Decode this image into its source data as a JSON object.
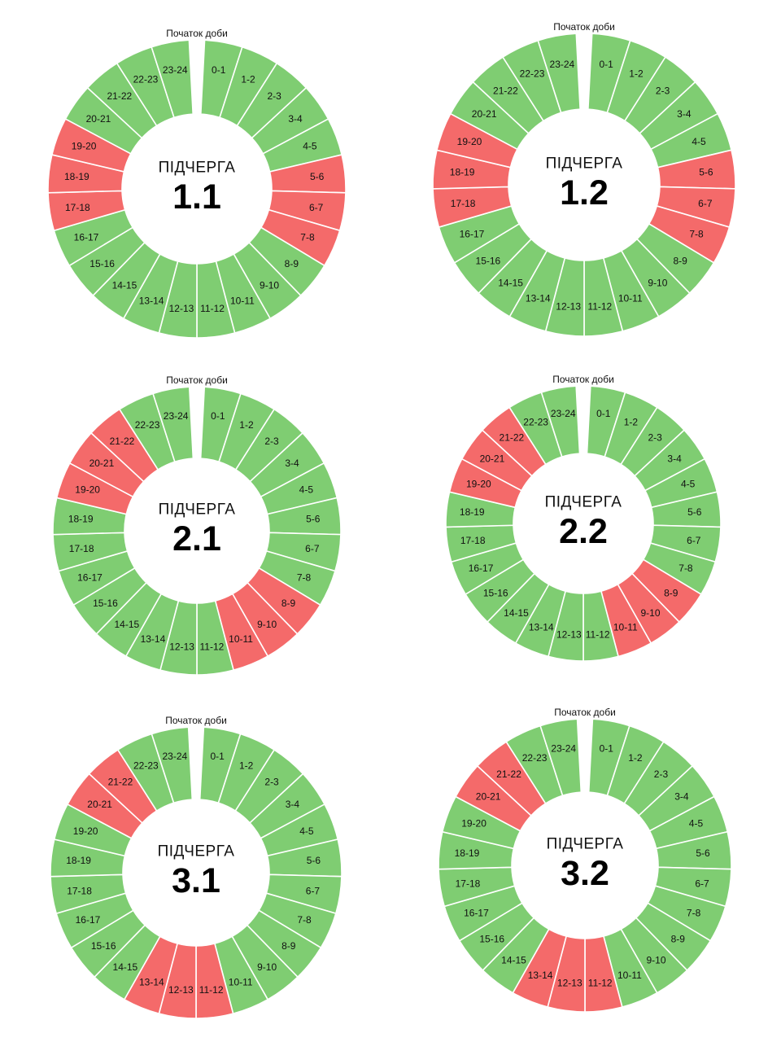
{
  "colors": {
    "on": "#7fcd72",
    "off": "#f46a6a",
    "separator": "#ffffff"
  },
  "start_label": "Початок доби",
  "center_title": "ПІДЧЕРГА",
  "chart_data": [
    {
      "type": "pie",
      "queue": "1.1",
      "categories": [
        "0-1",
        "1-2",
        "2-3",
        "3-4",
        "4-5",
        "5-6",
        "6-7",
        "7-8",
        "8-9",
        "9-10",
        "10-11",
        "11-12",
        "12-13",
        "13-14",
        "14-15",
        "15-16",
        "16-17",
        "17-18",
        "18-19",
        "19-20",
        "20-21",
        "21-22",
        "22-23",
        "23-24"
      ],
      "outage_hours": [
        "5-6",
        "6-7",
        "7-8",
        "17-18",
        "18-19",
        "19-20"
      ]
    },
    {
      "type": "pie",
      "queue": "1.2",
      "categories": [
        "0-1",
        "1-2",
        "2-3",
        "3-4",
        "4-5",
        "5-6",
        "6-7",
        "7-8",
        "8-9",
        "9-10",
        "10-11",
        "11-12",
        "12-13",
        "13-14",
        "14-15",
        "15-16",
        "16-17",
        "17-18",
        "18-19",
        "19-20",
        "20-21",
        "21-22",
        "22-23",
        "23-24"
      ],
      "outage_hours": [
        "5-6",
        "6-7",
        "7-8",
        "17-18",
        "18-19",
        "19-20"
      ]
    },
    {
      "type": "pie",
      "queue": "2.1",
      "categories": [
        "0-1",
        "1-2",
        "2-3",
        "3-4",
        "4-5",
        "5-6",
        "6-7",
        "7-8",
        "8-9",
        "9-10",
        "10-11",
        "11-12",
        "12-13",
        "13-14",
        "14-15",
        "15-16",
        "16-17",
        "17-18",
        "18-19",
        "19-20",
        "20-21",
        "21-22",
        "22-23",
        "23-24"
      ],
      "outage_hours": [
        "8-9",
        "9-10",
        "10-11",
        "19-20",
        "20-21",
        "21-22"
      ]
    },
    {
      "type": "pie",
      "queue": "2.2",
      "categories": [
        "0-1",
        "1-2",
        "2-3",
        "3-4",
        "4-5",
        "5-6",
        "6-7",
        "7-8",
        "8-9",
        "9-10",
        "10-11",
        "11-12",
        "12-13",
        "13-14",
        "14-15",
        "15-16",
        "16-17",
        "17-18",
        "18-19",
        "19-20",
        "20-21",
        "21-22",
        "22-23",
        "23-24"
      ],
      "outage_hours": [
        "8-9",
        "9-10",
        "10-11",
        "19-20",
        "20-21",
        "21-22"
      ]
    },
    {
      "type": "pie",
      "queue": "3.1",
      "categories": [
        "0-1",
        "1-2",
        "2-3",
        "3-4",
        "4-5",
        "5-6",
        "6-7",
        "7-8",
        "8-9",
        "9-10",
        "10-11",
        "11-12",
        "12-13",
        "13-14",
        "14-15",
        "15-16",
        "16-17",
        "17-18",
        "18-19",
        "19-20",
        "20-21",
        "21-22",
        "22-23",
        "23-24"
      ],
      "outage_hours": [
        "11-12",
        "12-13",
        "13-14",
        "20-21",
        "21-22"
      ]
    },
    {
      "type": "pie",
      "queue": "3.2",
      "categories": [
        "0-1",
        "1-2",
        "2-3",
        "3-4",
        "4-5",
        "5-6",
        "6-7",
        "7-8",
        "8-9",
        "9-10",
        "10-11",
        "11-12",
        "12-13",
        "13-14",
        "14-15",
        "15-16",
        "16-17",
        "17-18",
        "18-19",
        "19-20",
        "20-21",
        "21-22",
        "22-23",
        "23-24"
      ],
      "outage_hours": [
        "11-12",
        "12-13",
        "13-14",
        "20-21",
        "21-22"
      ]
    }
  ]
}
